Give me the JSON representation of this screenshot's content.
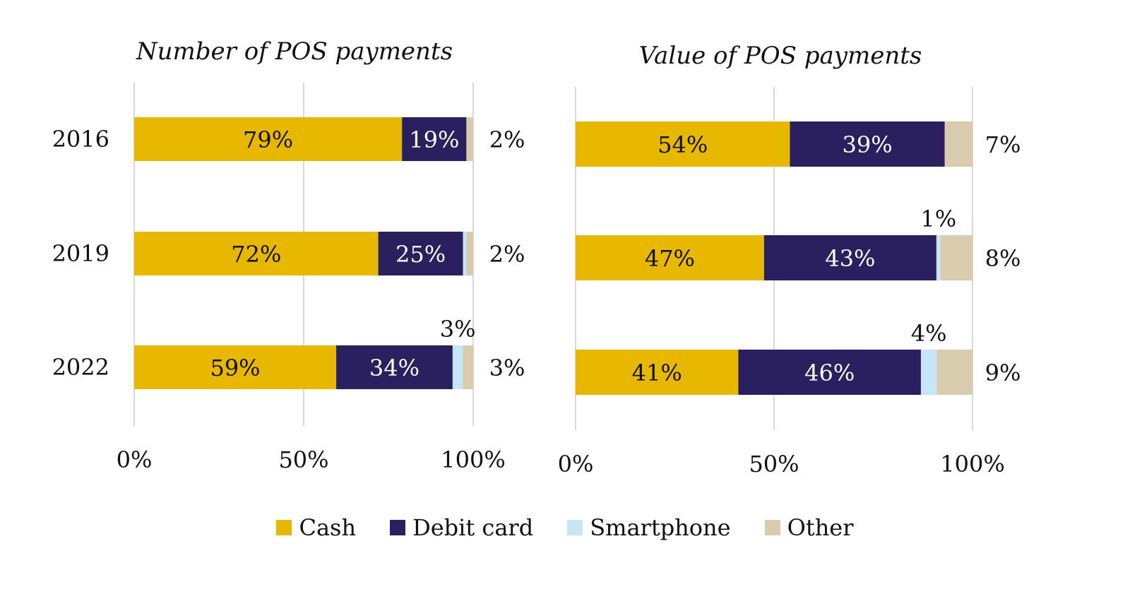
{
  "chart_data": [
    {
      "type": "bar",
      "orientation": "horizontal",
      "stacked": true,
      "title": "Number of POS payments",
      "categories": [
        "2016",
        "2019",
        "2022"
      ],
      "series": [
        {
          "name": "Cash",
          "values": [
            79,
            72,
            59
          ],
          "labels": [
            "79%",
            "72%",
            "59%"
          ]
        },
        {
          "name": "Debit card",
          "values": [
            19,
            25,
            34
          ],
          "labels": [
            "19%",
            "25%",
            "34%"
          ]
        },
        {
          "name": "Smartphone",
          "values": [
            0,
            1,
            3
          ],
          "labels": [
            "",
            "",
            "3%"
          ]
        },
        {
          "name": "Other",
          "values": [
            2,
            2,
            3
          ],
          "labels": [
            "2%",
            "2%",
            "3%"
          ]
        }
      ],
      "xlim": [
        0,
        100
      ],
      "xticks": [
        "0%",
        "50%",
        "100%"
      ],
      "grid": true
    },
    {
      "type": "bar",
      "orientation": "horizontal",
      "stacked": true,
      "title": "Value of POS payments",
      "categories": [
        "2016",
        "2019",
        "2022"
      ],
      "series": [
        {
          "name": "Cash",
          "values": [
            54,
            47,
            41
          ],
          "labels": [
            "54%",
            "47%",
            "41%"
          ]
        },
        {
          "name": "Debit card",
          "values": [
            39,
            43,
            46
          ],
          "labels": [
            "39%",
            "43%",
            "46%"
          ]
        },
        {
          "name": "Smartphone",
          "values": [
            0,
            1,
            4
          ],
          "labels": [
            "",
            "1%",
            "4%"
          ]
        },
        {
          "name": "Other",
          "values": [
            7,
            8,
            9
          ],
          "labels": [
            "7%",
            "8%",
            "9%"
          ]
        }
      ],
      "xlim": [
        0,
        100
      ],
      "xticks": [
        "0%",
        "50%",
        "100%"
      ],
      "grid": true
    }
  ],
  "legend": {
    "placement": "bottom",
    "items": [
      {
        "name": "Cash",
        "color": "#E8B800"
      },
      {
        "name": "Debit card",
        "color": "#2A1F5F"
      },
      {
        "name": "Smartphone",
        "color": "#C6E6F8"
      },
      {
        "name": "Other",
        "color": "#D8CBAE"
      }
    ]
  },
  "colors": {
    "Cash": "#E8B800",
    "Debit card": "#2A1F5F",
    "Smartphone": "#C6E6F8",
    "Other": "#D8CBAE",
    "grid": "#D9D9D9"
  }
}
